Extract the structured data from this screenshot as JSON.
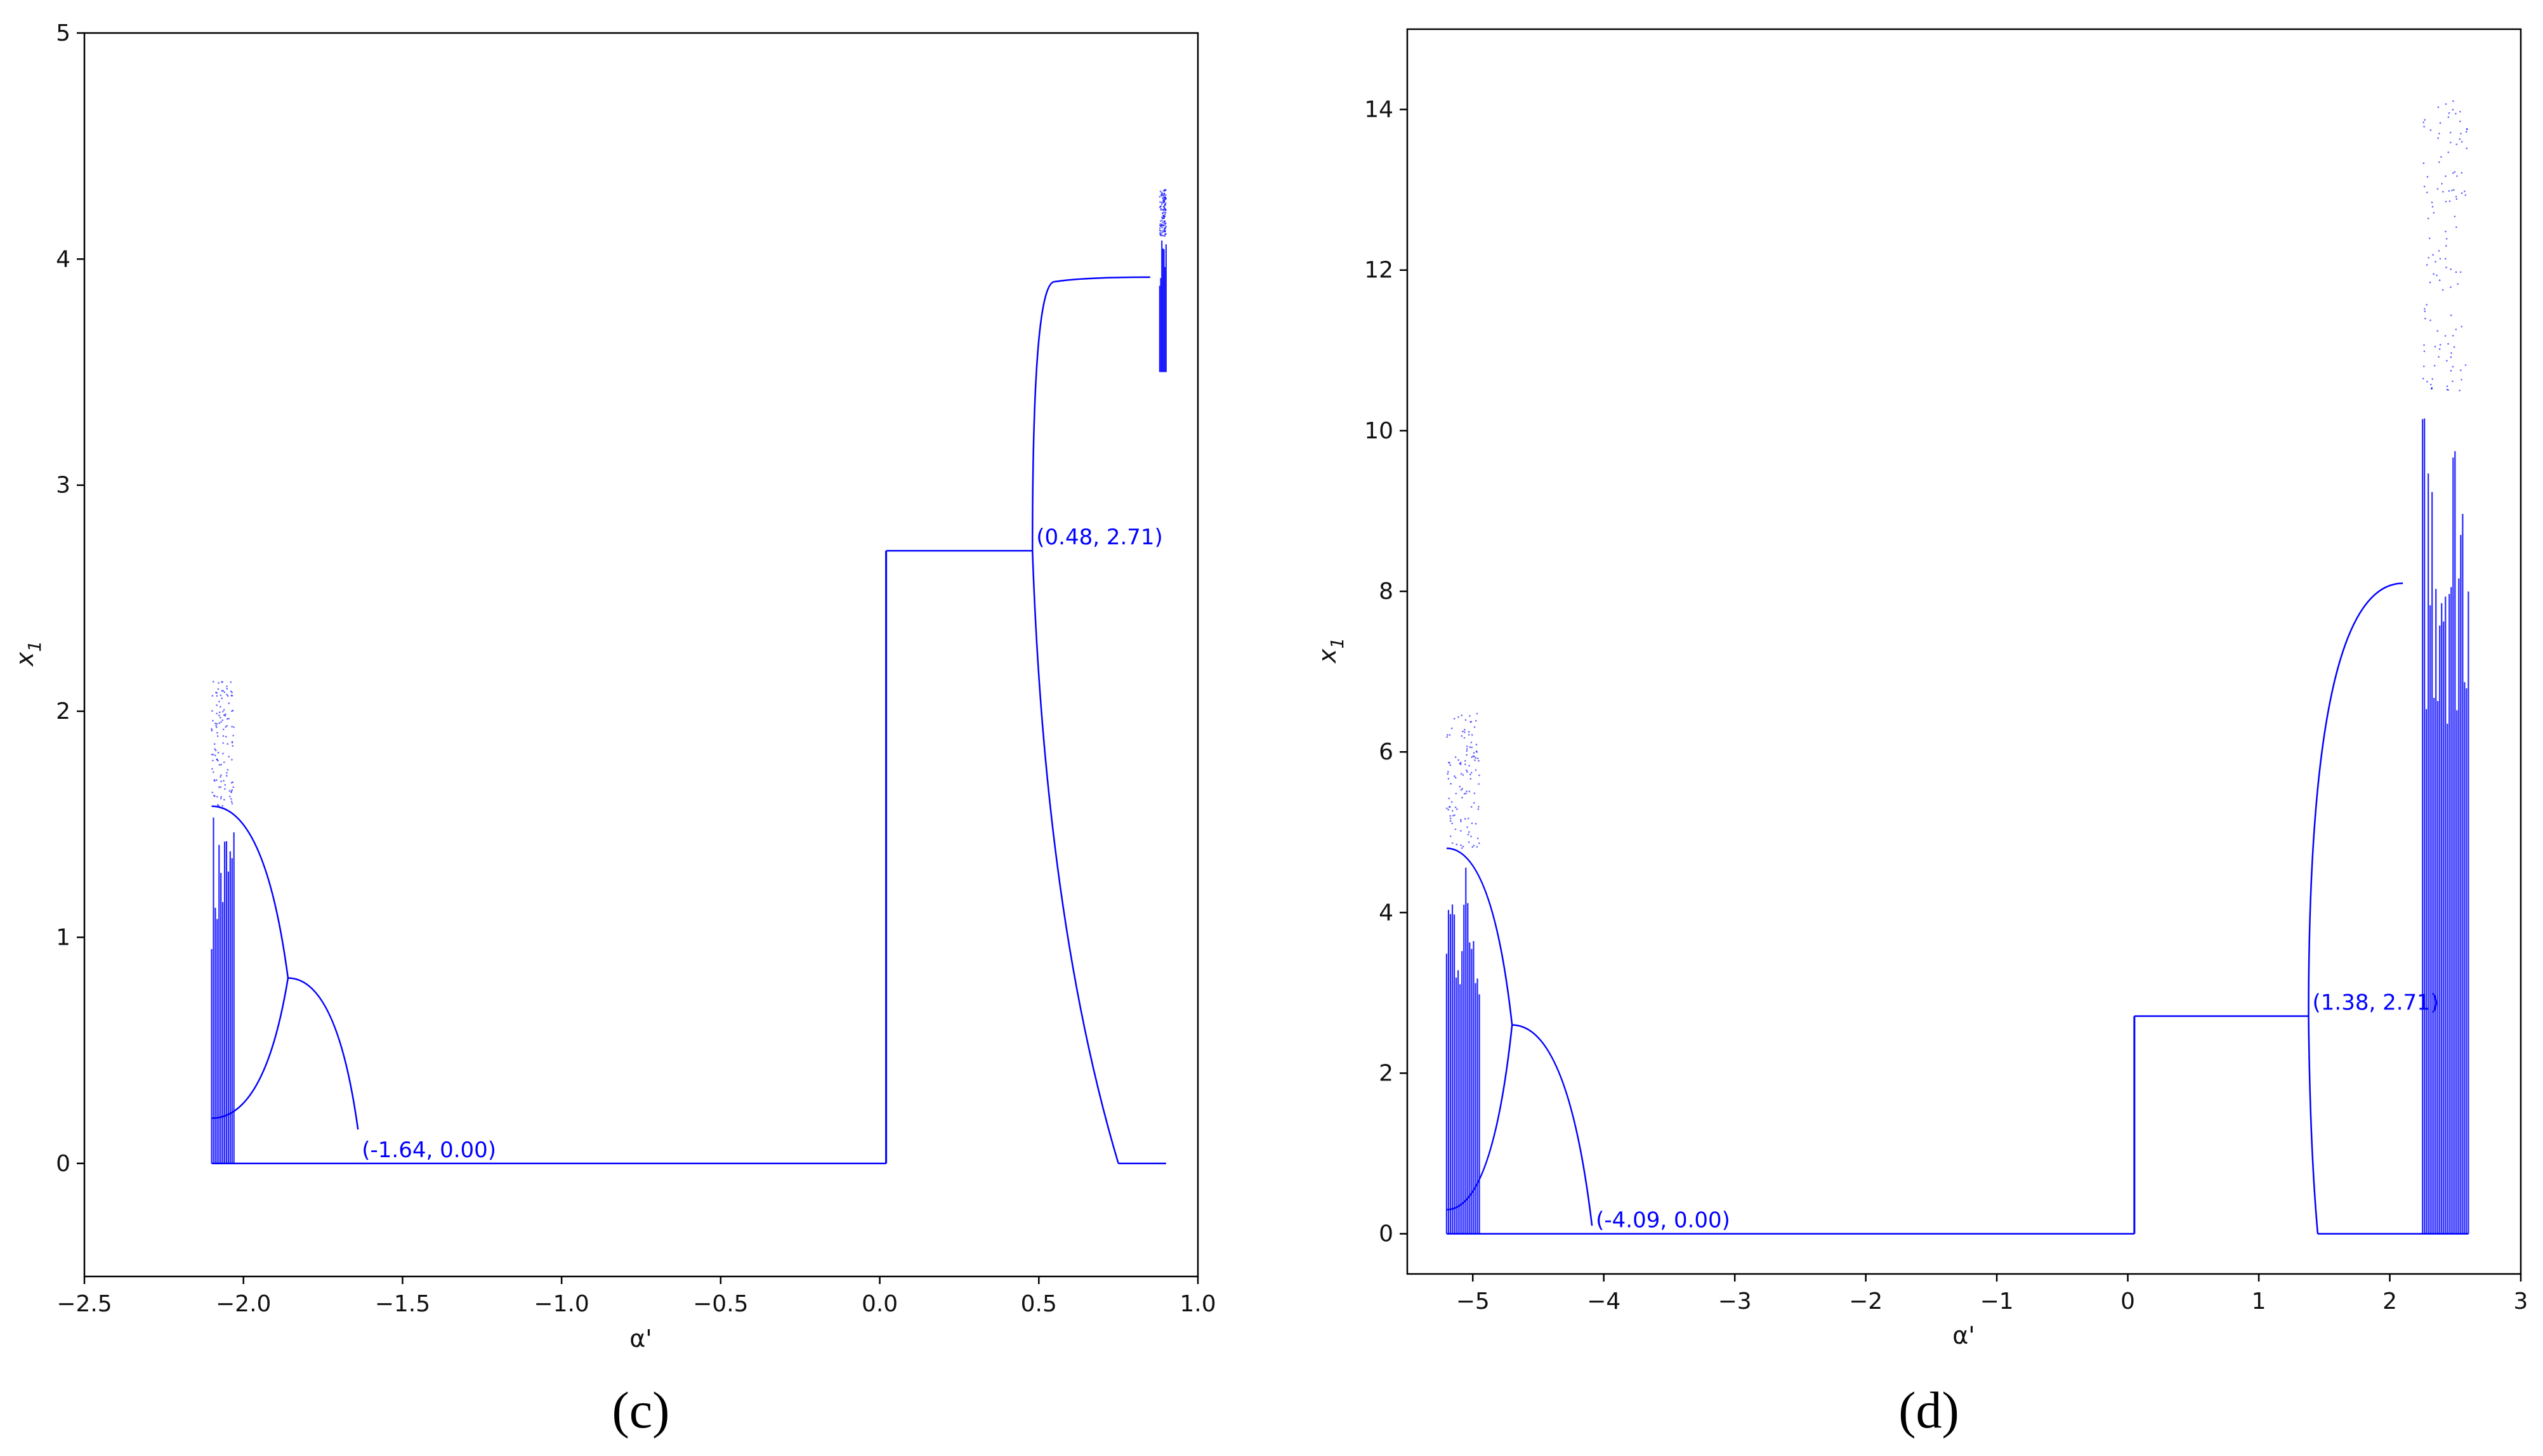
{
  "colors": {
    "series": "#0000ff",
    "axis": "#000000",
    "background": "#ffffff"
  },
  "chart_data": [
    {
      "type": "scatter",
      "panel_label": "(c)",
      "xlabel": "α'",
      "ylabel": "x1",
      "xlim": [
        -2.5,
        1.0
      ],
      "ylim": [
        -0.5,
        5.0
      ],
      "xticks": [
        -2.5,
        -2.0,
        -1.5,
        -1.0,
        -0.5,
        0.0,
        0.5,
        1.0
      ],
      "xtick_labels": [
        "−2.5",
        "−2.0",
        "−1.5",
        "−1.0",
        "−0.5",
        "0.0",
        "0.5",
        "1.0"
      ],
      "yticks": [
        0,
        1,
        2,
        3,
        4,
        5
      ],
      "ytick_labels": [
        "0",
        "1",
        "2",
        "3",
        "4",
        "5"
      ],
      "grid": false,
      "series": [
        {
          "kind": "flat",
          "x": [
            -2.1,
            0.02
          ],
          "y": 0.0
        },
        {
          "kind": "plateau",
          "x": [
            0.02,
            0.48
          ],
          "y": 2.71
        },
        {
          "kind": "main_branch",
          "x": [
            -1.64,
            -1.86
          ],
          "y": [
            0.15,
            0.82
          ]
        },
        {
          "kind": "bifurcation_upper",
          "x": [
            -1.86,
            -2.1
          ],
          "y": [
            0.82,
            1.58
          ]
        },
        {
          "kind": "bifurcation_lower",
          "x": [
            -1.86,
            -2.1
          ],
          "y": [
            0.82,
            0.2
          ]
        },
        {
          "kind": "chaos_band",
          "x": [
            -2.1,
            -2.03
          ],
          "y": [
            0.0,
            1.58
          ]
        },
        {
          "kind": "arch_left",
          "x": [
            0.48,
            0.55
          ],
          "y": [
            2.71,
            3.9
          ]
        },
        {
          "kind": "arch_top",
          "x": [
            0.55,
            0.85
          ],
          "y": [
            3.9,
            3.92
          ]
        },
        {
          "kind": "arch_lower",
          "x": [
            0.48,
            0.75
          ],
          "y": [
            2.71,
            0.0
          ]
        },
        {
          "kind": "chaos_band_right",
          "x": [
            0.88,
            0.9
          ],
          "y": [
            3.5,
            4.1
          ]
        },
        {
          "kind": "flat_right",
          "x": [
            0.75,
            0.9
          ],
          "y": 0.0
        }
      ],
      "annotations": [
        {
          "text": "(-1.64, 0.00)",
          "x": -1.64,
          "y": 0.0
        },
        {
          "text": "(0.48, 2.71)",
          "x": 0.48,
          "y": 2.71
        }
      ]
    },
    {
      "type": "scatter",
      "panel_label": "(d)",
      "xlabel": "α'",
      "ylabel": "x1",
      "xlim": [
        -5.5,
        3.0
      ],
      "ylim": [
        -0.5,
        15.0
      ],
      "xticks": [
        -5,
        -4,
        -3,
        -2,
        -1,
        0,
        1,
        2,
        3
      ],
      "xtick_labels": [
        "−5",
        "−4",
        "−3",
        "−2",
        "−1",
        "0",
        "1",
        "2",
        "3"
      ],
      "yticks": [
        0,
        2,
        4,
        6,
        8,
        10,
        12,
        14
      ],
      "ytick_labels": [
        "0",
        "2",
        "4",
        "6",
        "8",
        "10",
        "12",
        "14"
      ],
      "grid": false,
      "series": [
        {
          "kind": "flat",
          "x": [
            -5.2,
            0.05
          ],
          "y": 0.0
        },
        {
          "kind": "plateau",
          "x": [
            0.05,
            1.38
          ],
          "y": 2.71
        },
        {
          "kind": "main_branch",
          "x": [
            -4.09,
            -4.7
          ],
          "y": [
            0.1,
            2.6
          ]
        },
        {
          "kind": "bifurcation_upper",
          "x": [
            -4.7,
            -5.2
          ],
          "y": [
            2.6,
            4.8
          ]
        },
        {
          "kind": "bifurcation_lower",
          "x": [
            -4.7,
            -5.2
          ],
          "y": [
            2.6,
            0.3
          ]
        },
        {
          "kind": "chaos_band",
          "x": [
            -5.2,
            -4.95
          ],
          "y": [
            0.0,
            4.8
          ]
        },
        {
          "kind": "arch_rise",
          "x": [
            1.38,
            2.1
          ],
          "y": [
            2.71,
            8.1
          ]
        },
        {
          "kind": "arch_lower",
          "x": [
            1.38,
            1.45
          ],
          "y": [
            2.71,
            0.0
          ]
        },
        {
          "kind": "chaos_band_right",
          "x": [
            2.25,
            2.6
          ],
          "y": [
            0.0,
            10.5
          ]
        },
        {
          "kind": "flat_right",
          "x": [
            1.45,
            2.6
          ],
          "y": 0.0
        }
      ],
      "annotations": [
        {
          "text": "(-4.09, 0.00)",
          "x": -4.09,
          "y": 0.0
        },
        {
          "text": "(1.38, 2.71)",
          "x": 1.38,
          "y": 2.71
        }
      ]
    }
  ]
}
